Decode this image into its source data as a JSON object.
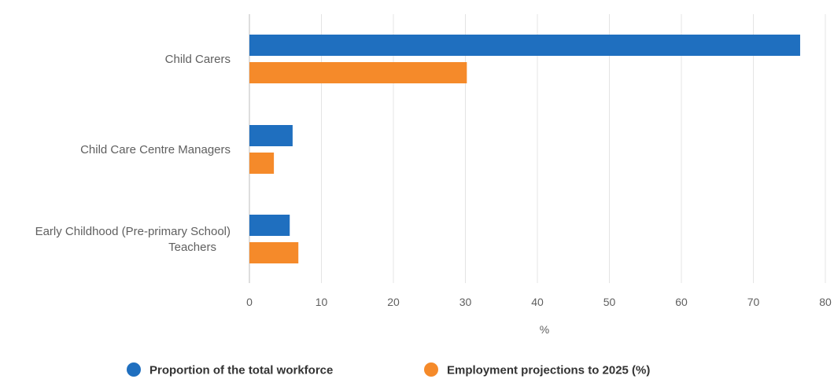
{
  "chart_data": {
    "type": "bar",
    "orientation": "horizontal",
    "categories": [
      [
        "Child Carers"
      ],
      [
        "Child Care Centre Managers"
      ],
      [
        "Early Childhood (Pre-primary School)",
        "Teachers"
      ]
    ],
    "series": [
      {
        "name": "Proportion of the total workforce",
        "color": "#1f6fbf",
        "values": [
          76.5,
          6.0,
          5.6
        ]
      },
      {
        "name": "Employment projections to 2025 (%)",
        "color": "#f58a2a",
        "values": [
          30.2,
          3.4,
          6.8
        ]
      }
    ],
    "xlabel": "%",
    "xlim": [
      0,
      80
    ],
    "xticks": [
      0,
      10,
      20,
      30,
      40,
      50,
      60,
      70,
      80
    ],
    "grid": true,
    "legend_position": "bottom"
  }
}
